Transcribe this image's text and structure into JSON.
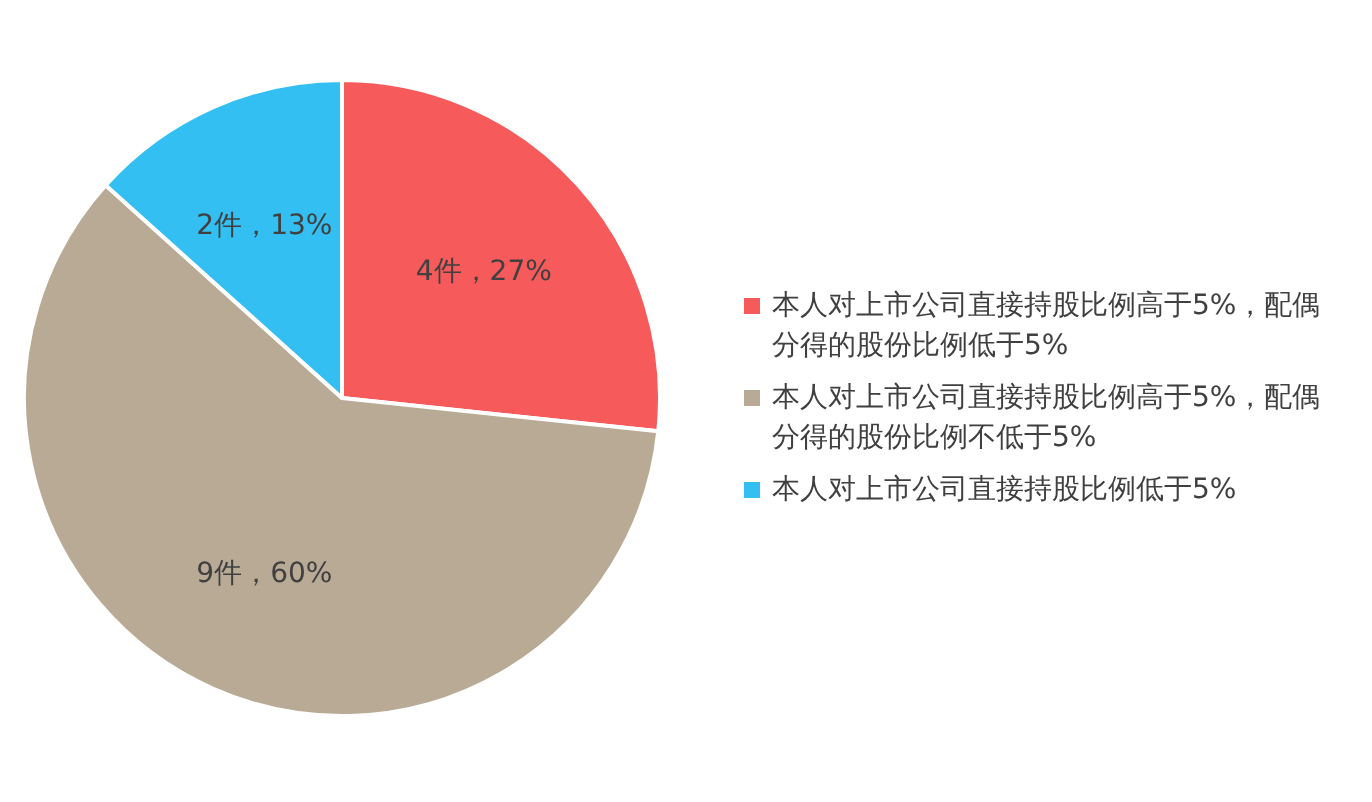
{
  "chart_data": {
    "type": "pie",
    "categories": [
      "本人对上市公司直接持股比例高于5%，配偶分得的股份比例低于5%",
      "本人对上市公司直接持股比例高于5%，配偶分得的股份比例不低于5%",
      "本人对上市公司直接持股比例低于5%"
    ],
    "values": [
      4,
      9,
      2
    ],
    "value_labels": [
      "4件，27%",
      "9件，60%",
      "2件，13%"
    ],
    "colors": [
      "#f65a5b",
      "#b9aa95",
      "#33bff1"
    ],
    "legend": "right"
  }
}
